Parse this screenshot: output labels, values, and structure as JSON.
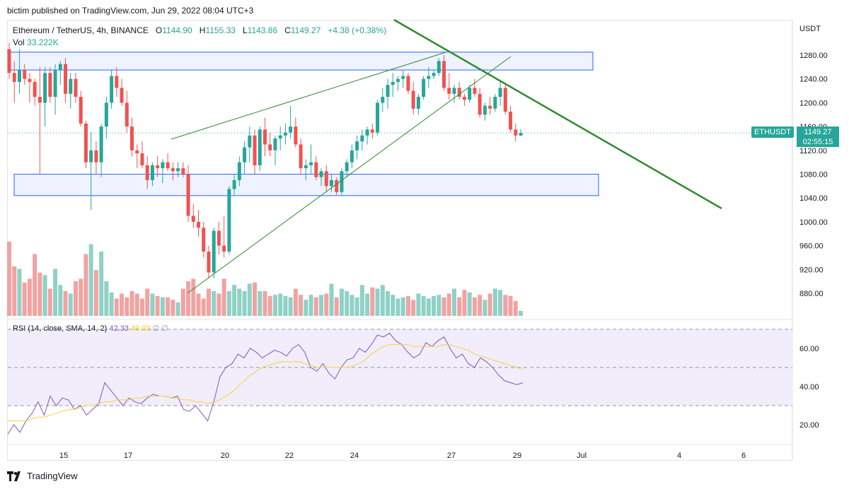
{
  "header": {
    "publish_text": "bictim published on TradingView.com, Jun 29, 2022 08:04 UTC+3"
  },
  "legend": {
    "symbol": "Ethereum / TetherUS, 4h, BINANCE",
    "open_label": "O",
    "open": "1144.90",
    "high_label": "H",
    "high": "1155.33",
    "low_label": "L",
    "low": "1143.86",
    "close_label": "C",
    "close": "1149.27",
    "change": "+4.38 (+0.38%)",
    "vol_label": "Vol",
    "vol_value": "33.222K"
  },
  "price_tag": {
    "symbol": "ETHUSDT",
    "price": "1149.27",
    "countdown": "02:55:15"
  },
  "rsi_legend": {
    "label": "RSI (14, close, SMA, 14, 2)",
    "rsi": "42.33",
    "sma": "49.03",
    "extra": "∅ ∅"
  },
  "footer": {
    "brand": "TradingView"
  },
  "colors": {
    "up": "#26a69a",
    "down": "#ef5350",
    "vol_up": "#8fd1c6",
    "vol_down": "#f0a3a1",
    "trend_green": "#2e8b2e",
    "zone_border": "#2962ff",
    "zone_fill": "#eef3ff",
    "rsi_line": "#7e57c2",
    "rsi_sma": "#f5d33f",
    "rsi_band": "#f1edfa"
  },
  "chart_data": [
    {
      "type": "candlestick",
      "title": "Ethereum / TetherUS, 4h, BINANCE",
      "ylabel": "USDT",
      "y_ticks": [
        "1280.00",
        "1240.00",
        "1200.00",
        "1160.00",
        "1120.00",
        "1080.00",
        "1040.00",
        "1000.00",
        "960.00",
        "920.00",
        "880.00"
      ],
      "ylim": [
        850,
        1300
      ],
      "x_ticks": [
        "15",
        "17",
        "20",
        "22",
        "24",
        "27",
        "29",
        "Jul",
        "4",
        "6"
      ],
      "candles": [
        [
          1290,
          1300,
          1240,
          1250
        ],
        [
          1250,
          1270,
          1200,
          1235
        ],
        [
          1235,
          1290,
          1215,
          1255
        ],
        [
          1255,
          1265,
          1230,
          1240
        ],
        [
          1240,
          1250,
          1200,
          1235
        ],
        [
          1235,
          1240,
          1195,
          1210
        ],
        [
          1210,
          1260,
          1080,
          1200
        ],
        [
          1200,
          1260,
          1160,
          1250
        ],
        [
          1250,
          1260,
          1200,
          1210
        ],
        [
          1210,
          1265,
          1180,
          1255
        ],
        [
          1255,
          1270,
          1230,
          1265
        ],
        [
          1265,
          1275,
          1200,
          1215
        ],
        [
          1215,
          1250,
          1190,
          1240
        ],
        [
          1240,
          1250,
          1200,
          1210
        ],
        [
          1210,
          1220,
          1160,
          1165
        ],
        [
          1165,
          1170,
          1090,
          1100
        ],
        [
          1100,
          1150,
          1020,
          1120
        ],
        [
          1120,
          1135,
          1080,
          1100
        ],
        [
          1100,
          1165,
          1075,
          1160
        ],
        [
          1160,
          1210,
          1140,
          1200
        ],
        [
          1200,
          1255,
          1190,
          1245
        ],
        [
          1245,
          1260,
          1210,
          1225
        ],
        [
          1225,
          1240,
          1195,
          1200
        ],
        [
          1200,
          1220,
          1150,
          1160
        ],
        [
          1160,
          1175,
          1110,
          1120
        ],
        [
          1120,
          1130,
          1090,
          1115
        ],
        [
          1115,
          1135,
          1090,
          1095
        ],
        [
          1095,
          1110,
          1055,
          1070
        ],
        [
          1070,
          1100,
          1060,
          1095
        ],
        [
          1095,
          1110,
          1075,
          1090
        ],
        [
          1090,
          1105,
          1065,
          1100
        ],
        [
          1100,
          1115,
          1085,
          1090
        ],
        [
          1090,
          1100,
          1070,
          1085
        ],
        [
          1085,
          1100,
          1075,
          1090
        ],
        [
          1090,
          1100,
          1075,
          1080
        ],
        [
          1080,
          1095,
          1000,
          1010
        ],
        [
          1010,
          1030,
          990,
          1000
        ],
        [
          1000,
          1020,
          975,
          990
        ],
        [
          990,
          1000,
          940,
          950
        ],
        [
          950,
          960,
          905,
          915
        ],
        [
          915,
          990,
          905,
          985
        ],
        [
          985,
          1000,
          945,
          960
        ],
        [
          960,
          1010,
          940,
          950
        ],
        [
          950,
          1060,
          945,
          1055
        ],
        [
          1055,
          1080,
          1045,
          1070
        ],
        [
          1070,
          1110,
          1060,
          1100
        ],
        [
          1100,
          1135,
          1080,
          1125
        ],
        [
          1125,
          1160,
          1100,
          1145
        ],
        [
          1145,
          1155,
          1080,
          1095
        ],
        [
          1095,
          1160,
          1085,
          1155
        ],
        [
          1155,
          1175,
          1110,
          1130
        ],
        [
          1130,
          1150,
          1110,
          1120
        ],
        [
          1120,
          1145,
          1095,
          1140
        ],
        [
          1140,
          1160,
          1120,
          1145
        ],
        [
          1145,
          1165,
          1130,
          1150
        ],
        [
          1150,
          1195,
          1140,
          1160
        ],
        [
          1160,
          1175,
          1125,
          1130
        ],
        [
          1130,
          1140,
          1080,
          1090
        ],
        [
          1090,
          1105,
          1070,
          1095
        ],
        [
          1095,
          1130,
          1080,
          1100
        ],
        [
          1100,
          1110,
          1070,
          1075
        ],
        [
          1075,
          1090,
          1060,
          1085
        ],
        [
          1085,
          1095,
          1050,
          1060
        ],
        [
          1060,
          1080,
          1050,
          1070
        ],
        [
          1070,
          1075,
          1045,
          1050
        ],
        [
          1050,
          1090,
          1045,
          1085
        ],
        [
          1085,
          1105,
          1075,
          1100
        ],
        [
          1100,
          1130,
          1090,
          1120
        ],
        [
          1120,
          1145,
          1105,
          1135
        ],
        [
          1135,
          1155,
          1120,
          1145
        ],
        [
          1145,
          1160,
          1130,
          1155
        ],
        [
          1155,
          1165,
          1140,
          1150
        ],
        [
          1150,
          1205,
          1145,
          1200
        ],
        [
          1200,
          1225,
          1185,
          1210
        ],
        [
          1210,
          1240,
          1190,
          1230
        ],
        [
          1230,
          1250,
          1210,
          1235
        ],
        [
          1235,
          1245,
          1220,
          1240
        ],
        [
          1240,
          1255,
          1225,
          1245
        ],
        [
          1245,
          1250,
          1215,
          1220
        ],
        [
          1220,
          1235,
          1180,
          1190
        ],
        [
          1190,
          1215,
          1180,
          1210
        ],
        [
          1210,
          1245,
          1205,
          1240
        ],
        [
          1240,
          1260,
          1225,
          1245
        ],
        [
          1245,
          1255,
          1240,
          1250
        ],
        [
          1250,
          1275,
          1245,
          1270
        ],
        [
          1270,
          1280,
          1220,
          1225
        ],
        [
          1225,
          1250,
          1205,
          1215
        ],
        [
          1215,
          1230,
          1200,
          1225
        ],
        [
          1225,
          1235,
          1205,
          1210
        ],
        [
          1210,
          1215,
          1195,
          1205
        ],
        [
          1205,
          1230,
          1200,
          1225
        ],
        [
          1225,
          1240,
          1210,
          1215
        ],
        [
          1215,
          1225,
          1175,
          1180
        ],
        [
          1180,
          1200,
          1170,
          1195
        ],
        [
          1195,
          1210,
          1180,
          1190
        ],
        [
          1190,
          1215,
          1185,
          1210
        ],
        [
          1210,
          1235,
          1195,
          1225
        ],
        [
          1225,
          1230,
          1180,
          1185
        ],
        [
          1185,
          1195,
          1150,
          1155
        ],
        [
          1155,
          1165,
          1135,
          1145
        ],
        [
          1144.9,
          1155.33,
          1143.86,
          1149.27
        ]
      ],
      "volume": [
        60,
        40,
        38,
        27,
        30,
        50,
        35,
        33,
        22,
        38,
        25,
        20,
        18,
        28,
        30,
        50,
        58,
        37,
        52,
        28,
        19,
        14,
        18,
        15,
        20,
        18,
        14,
        22,
        18,
        16,
        15,
        15,
        13,
        11,
        22,
        28,
        30,
        18,
        14,
        22,
        20,
        18,
        30,
        20,
        25,
        22,
        20,
        26,
        27,
        20,
        20,
        16,
        17,
        18,
        16,
        15,
        22,
        17,
        13,
        17,
        15,
        17,
        18,
        26,
        15,
        22,
        20,
        17,
        15,
        25,
        18,
        23,
        22,
        25,
        20,
        17,
        14,
        15,
        16,
        13,
        18,
        16,
        14,
        16,
        17,
        15,
        18,
        22,
        15,
        21,
        19,
        15,
        17,
        13,
        18,
        22,
        21,
        17,
        16,
        12,
        4
      ],
      "price_label": {
        "symbol": "ETHUSDT",
        "price": "1149.27",
        "countdown": "02:55:15"
      },
      "annotations": [
        "resistance zone ~1255–1285",
        "support zone ~1045–1080",
        "rising wedge",
        "descending trendline"
      ]
    },
    {
      "type": "line",
      "title": "RSI (14, close, SMA, 14, 2)",
      "y_ticks": [
        "60.00",
        "40.00",
        "20.00"
      ],
      "ylim": [
        10,
        75
      ],
      "bands": [
        30,
        50,
        70
      ],
      "series": [
        {
          "name": "RSI",
          "values": [
            15,
            20,
            16,
            22,
            26,
            32,
            25,
            35,
            30,
            34,
            33,
            28,
            30,
            25,
            28,
            31,
            42,
            38,
            34,
            30,
            34,
            32,
            31,
            34,
            36,
            35,
            35,
            34,
            35,
            28,
            27,
            30,
            26,
            22,
            32,
            45,
            50,
            52,
            57,
            55,
            60,
            58,
            55,
            57,
            59,
            58,
            56,
            60,
            62,
            58,
            50,
            48,
            52,
            47,
            44,
            50,
            54,
            55,
            60,
            58,
            62,
            67,
            66,
            68,
            64,
            62,
            58,
            55,
            57,
            63,
            61,
            64,
            66,
            60,
            55,
            57,
            52,
            50,
            55,
            53,
            50,
            46,
            43,
            42,
            41,
            42
          ]
        },
        {
          "name": "SMA",
          "values": [
            22,
            22,
            22,
            22,
            23,
            24,
            24,
            25,
            26,
            27,
            28,
            28,
            29,
            30,
            30,
            31,
            32,
            32,
            33,
            33,
            33,
            34,
            34,
            35,
            35,
            35,
            35,
            34,
            34,
            33,
            33,
            32,
            32,
            31,
            32,
            33,
            35,
            37,
            40,
            43,
            46,
            48,
            50,
            51,
            52,
            53,
            53,
            53,
            53,
            52,
            51,
            50,
            50,
            50,
            50,
            50,
            50,
            51,
            52,
            54,
            57,
            59,
            61,
            62,
            62,
            62,
            62,
            61,
            61,
            61,
            61,
            61,
            62,
            62,
            61,
            60,
            59,
            57,
            56,
            55,
            54,
            53,
            52,
            51,
            50,
            49
          ]
        }
      ],
      "last": {
        "rsi": "42.33",
        "sma": "49.03"
      }
    }
  ]
}
